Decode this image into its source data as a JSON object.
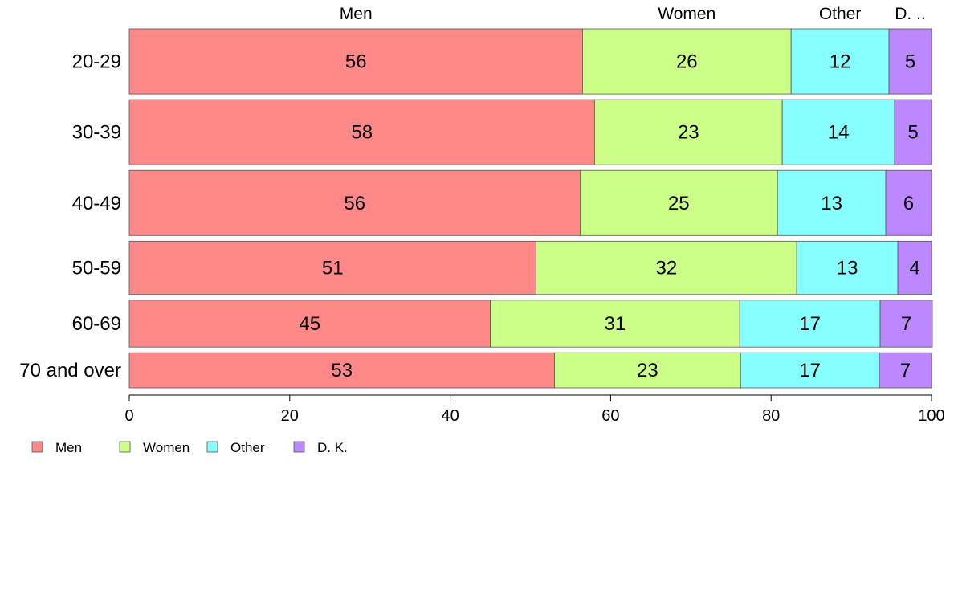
{
  "chart_data": {
    "type": "bar",
    "orientation": "horizontal",
    "stacked": true,
    "categories": [
      "20-29",
      "30-39",
      "40-49",
      "50-59",
      "60-69",
      "70 and over"
    ],
    "series": [
      {
        "name": "Men",
        "short_label": "Men",
        "color": "#ff8888",
        "values": [
          56.5,
          58.0,
          56.2,
          50.7,
          45.0,
          53.0
        ],
        "labels": [
          "56",
          "58",
          "56",
          "51",
          "45",
          "53"
        ]
      },
      {
        "name": "Women",
        "short_label": "Women",
        "color": "#ccff88",
        "values": [
          26.0,
          23.4,
          24.6,
          32.5,
          31.1,
          23.2
        ],
        "labels": [
          "26",
          "23",
          "25",
          "32",
          "31",
          "23"
        ]
      },
      {
        "name": "Other",
        "short_label": "Other",
        "color": "#88ffff",
        "values": [
          12.2,
          14.0,
          13.5,
          12.6,
          17.5,
          17.3
        ],
        "labels": [
          "12",
          "14",
          "13",
          "13",
          "17",
          "17"
        ]
      },
      {
        "name": "D. K.",
        "short_label": "D. ..",
        "color": "#bb88ff",
        "values": [
          5.3,
          4.6,
          5.7,
          4.2,
          6.5,
          6.5
        ],
        "labels": [
          "5",
          "5",
          "6",
          "4",
          "7",
          "7"
        ]
      }
    ],
    "xlim": [
      0,
      100
    ],
    "xticks": [
      0,
      20,
      40,
      60,
      80,
      100
    ],
    "bar_weights": [
      1.0,
      1.0,
      1.0,
      0.82,
      0.72,
      0.54
    ],
    "grid": false,
    "legend_position": "bottom-left",
    "column_headers_position": "top"
  }
}
